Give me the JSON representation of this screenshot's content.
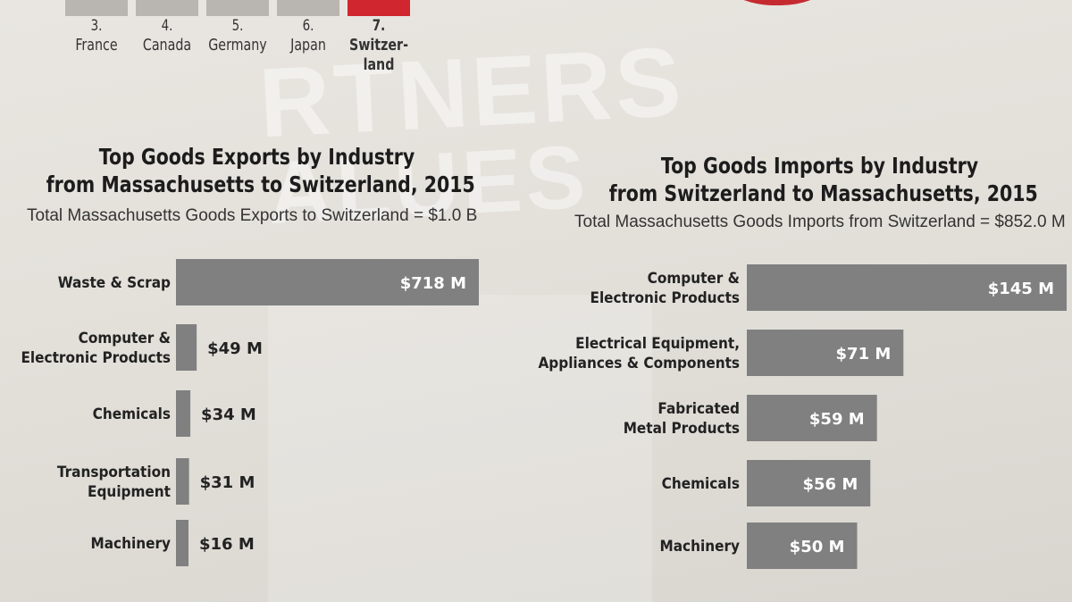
{
  "top_ranking": {
    "items": [
      {
        "num": "3.",
        "lines": [
          "France"
        ],
        "highlight": false
      },
      {
        "num": "4.",
        "lines": [
          "Canada"
        ],
        "highlight": false
      },
      {
        "num": "5.",
        "lines": [
          "Germany"
        ],
        "highlight": false
      },
      {
        "num": "6.",
        "lines": [
          "Japan"
        ],
        "highlight": false
      },
      {
        "num": "7.",
        "lines": [
          "Switzer-",
          "land"
        ],
        "highlight": true
      }
    ]
  },
  "colors": {
    "bar": "#808080",
    "accent_red": "#d0262f",
    "value_inside": "#ffffff",
    "value_outside": "#222222"
  },
  "chart_data": [
    {
      "type": "bar",
      "orientation": "horizontal",
      "title_line1": "Top Goods Exports by Industry",
      "title_line2": "from Massachusetts to Switzerland, 2015",
      "subtitle": "Total Massachusetts Goods Exports to Switzerland = $1.0 B",
      "unit": "$M",
      "categories": [
        [
          "Waste & Scrap"
        ],
        [
          "Computer &",
          "Electronic Products"
        ],
        [
          "Chemicals"
        ],
        [
          "Transportation",
          "Equipment"
        ],
        [
          "Machinery"
        ]
      ],
      "values": [
        718,
        49,
        34,
        31,
        16
      ],
      "value_labels": [
        "$718 M",
        "$49 M",
        "$34 M",
        "$31 M",
        "$16 M"
      ],
      "label_inside": [
        true,
        false,
        false,
        false,
        false
      ]
    },
    {
      "type": "bar",
      "orientation": "horizontal",
      "title_line1": "Top Goods Imports by Industry",
      "title_line2": "from Switzerland to Massachusetts, 2015",
      "subtitle": "Total Massachusetts Goods Imports from Switzerland = $852.0 M",
      "unit": "$M",
      "categories": [
        [
          "Computer &",
          "Electronic Products"
        ],
        [
          "Electrical Equipment,",
          "Appliances & Components"
        ],
        [
          "Fabricated",
          "Metal Products"
        ],
        [
          "Chemicals"
        ],
        [
          "Machinery"
        ]
      ],
      "values": [
        145,
        71,
        59,
        56,
        50
      ],
      "value_labels": [
        "$145 M",
        "$71 M",
        "$59 M",
        "$56 M",
        "$50 M"
      ],
      "label_inside": [
        true,
        true,
        true,
        true,
        true
      ]
    }
  ]
}
